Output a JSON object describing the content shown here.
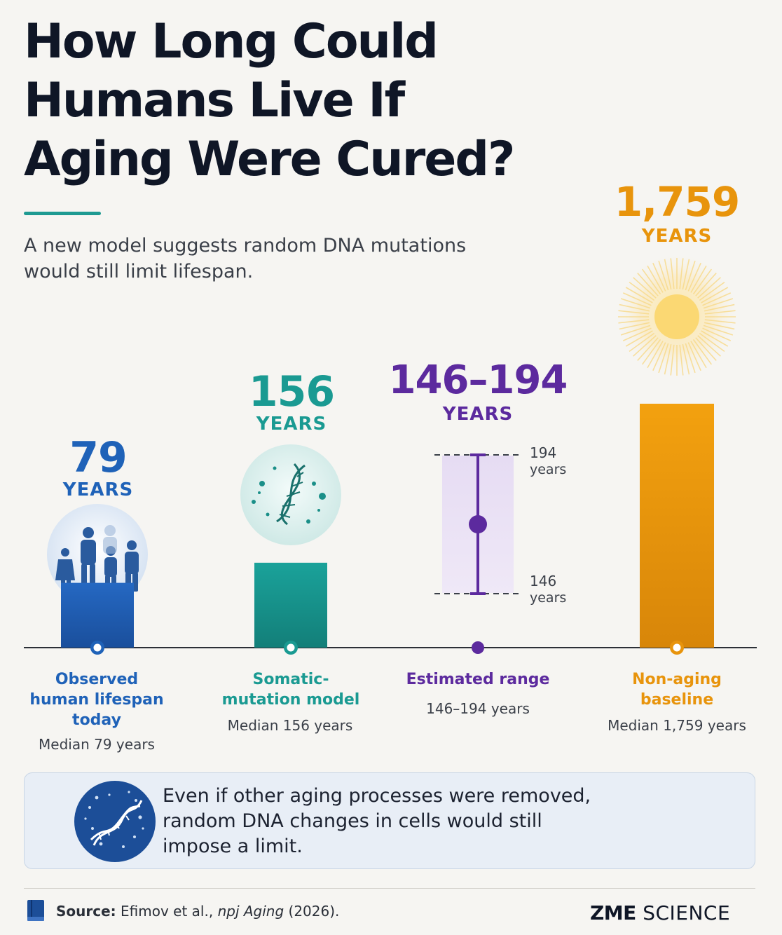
{
  "title_lines": [
    "How Long Could",
    "Humans Live If",
    "Aging Were Cured?"
  ],
  "subtitle_lines": [
    "A new model suggests random DNA mutations",
    "would still limit lifespan."
  ],
  "chart_data": {
    "type": "bar",
    "title": "How Long Could Humans Live If Aging Were Cured?",
    "categories": [
      "Observed human lifespan today",
      "Somatic-mutation model",
      "Estimated range",
      "Non-aging baseline"
    ],
    "values": [
      79,
      156,
      170,
      1759
    ],
    "range": {
      "low": 146,
      "high": 194
    },
    "value_labels": [
      "79",
      "156",
      "146–194",
      "1,759"
    ],
    "unit_label": "YEARS",
    "colors": [
      "#1f62b8",
      "#1a9a92",
      "#5c2a9e",
      "#e8940c"
    ],
    "notes": [
      "Median 79 years",
      "Median 156 years",
      "146–194 years",
      "Median 1,759 years"
    ],
    "range_tick_labels": {
      "high": [
        "194",
        "years"
      ],
      "low": [
        "146",
        "years"
      ]
    }
  },
  "labels": {
    "cat1": [
      "Observed",
      "human lifespan",
      "today"
    ],
    "cat2": [
      "Somatic-",
      "mutation model"
    ],
    "cat3": [
      "Estimated range"
    ],
    "cat4": [
      "Non-aging",
      "baseline"
    ]
  },
  "icons": [
    "people-icon",
    "dna-icon",
    "dna-mutation-icon",
    "book-icon",
    "sun-glow-icon"
  ],
  "callout_lines": [
    "Even if other aging processes were removed,",
    "random DNA changes in cells would still",
    "impose a limit."
  ],
  "footer": {
    "source_label": "Source:",
    "source_text": " Efimov et al., ",
    "source_journal": "npj Aging",
    "source_year": " (2026).",
    "logo_bold": "ZME",
    "logo_light": " SCIENCE"
  }
}
